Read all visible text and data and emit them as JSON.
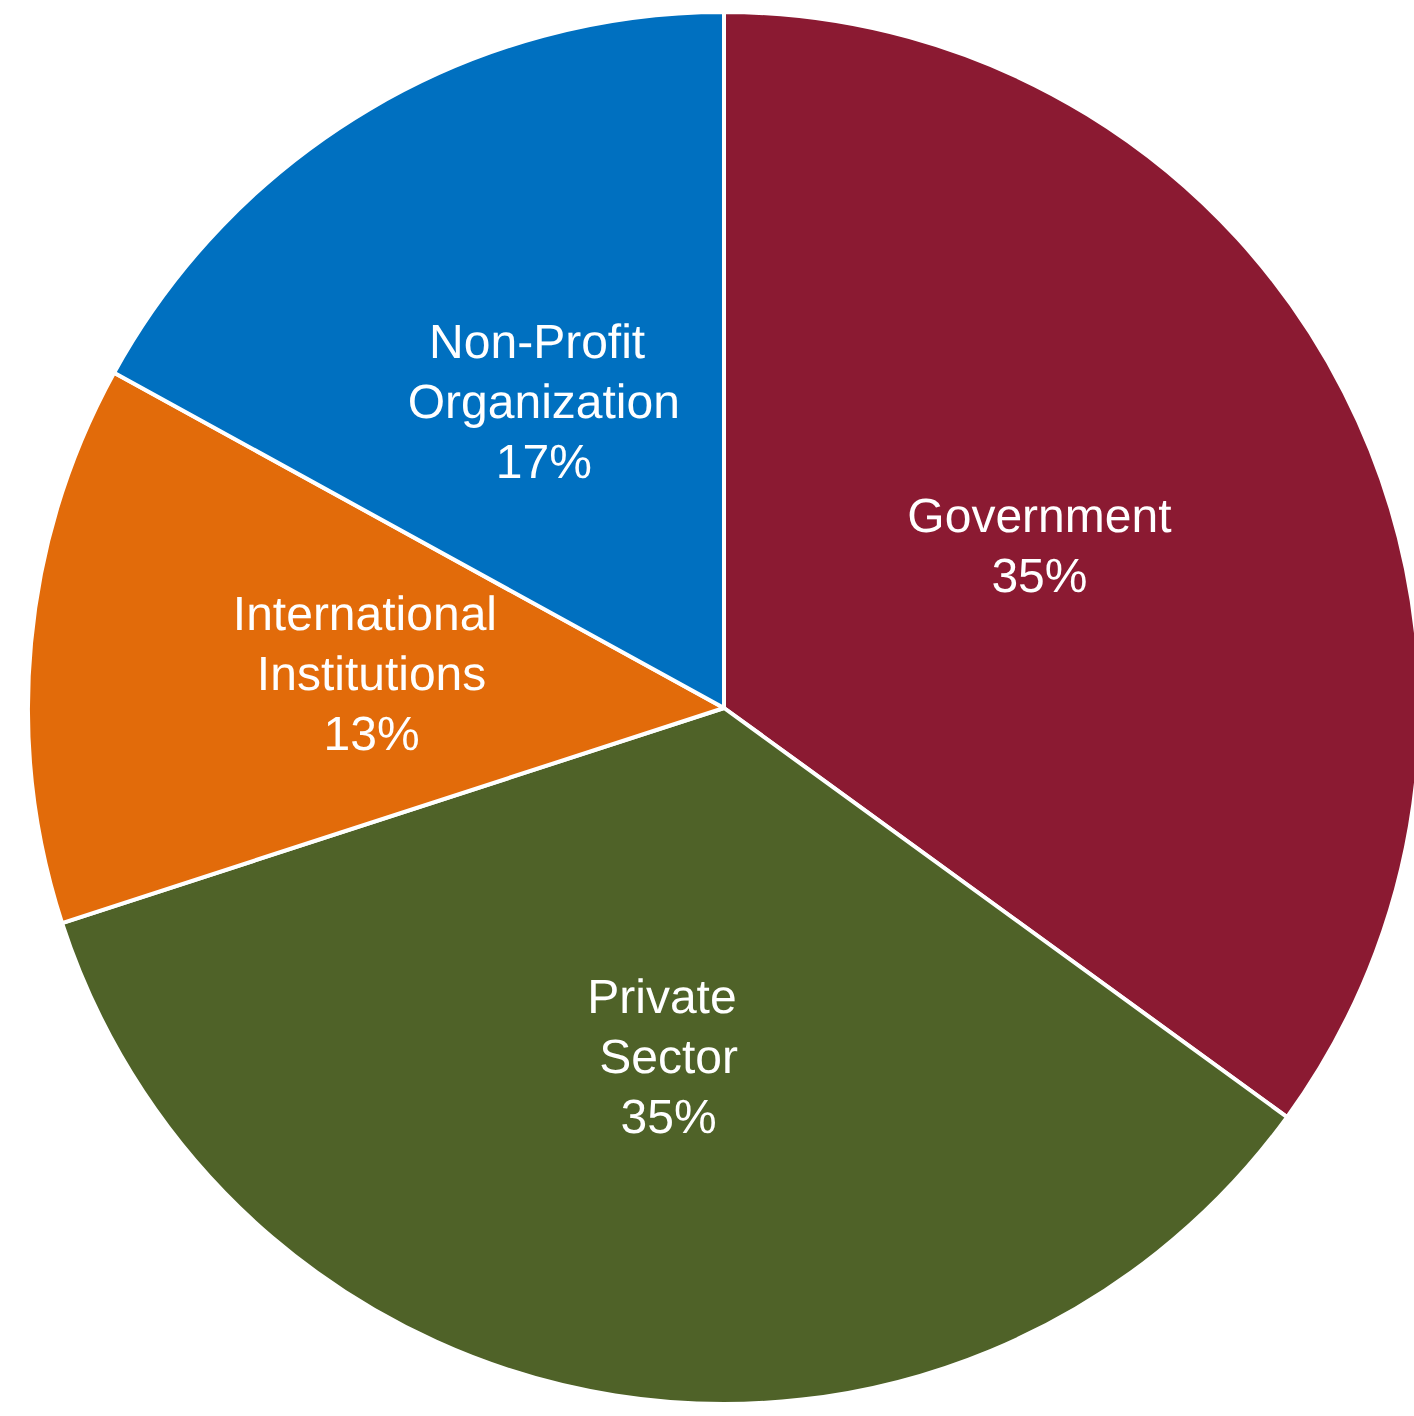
{
  "chart_data": {
    "type": "pie",
    "categories": [
      "Government",
      "Private Sector",
      "International Institutions",
      "Non-Profit Organization"
    ],
    "values": [
      35,
      35,
      13,
      17
    ],
    "colors": [
      "#8b1a32",
      "#4f6228",
      "#e26b0a",
      "#0070c0"
    ],
    "value_labels": [
      "35%",
      "35%",
      "13%",
      "17%"
    ],
    "legend": false
  }
}
